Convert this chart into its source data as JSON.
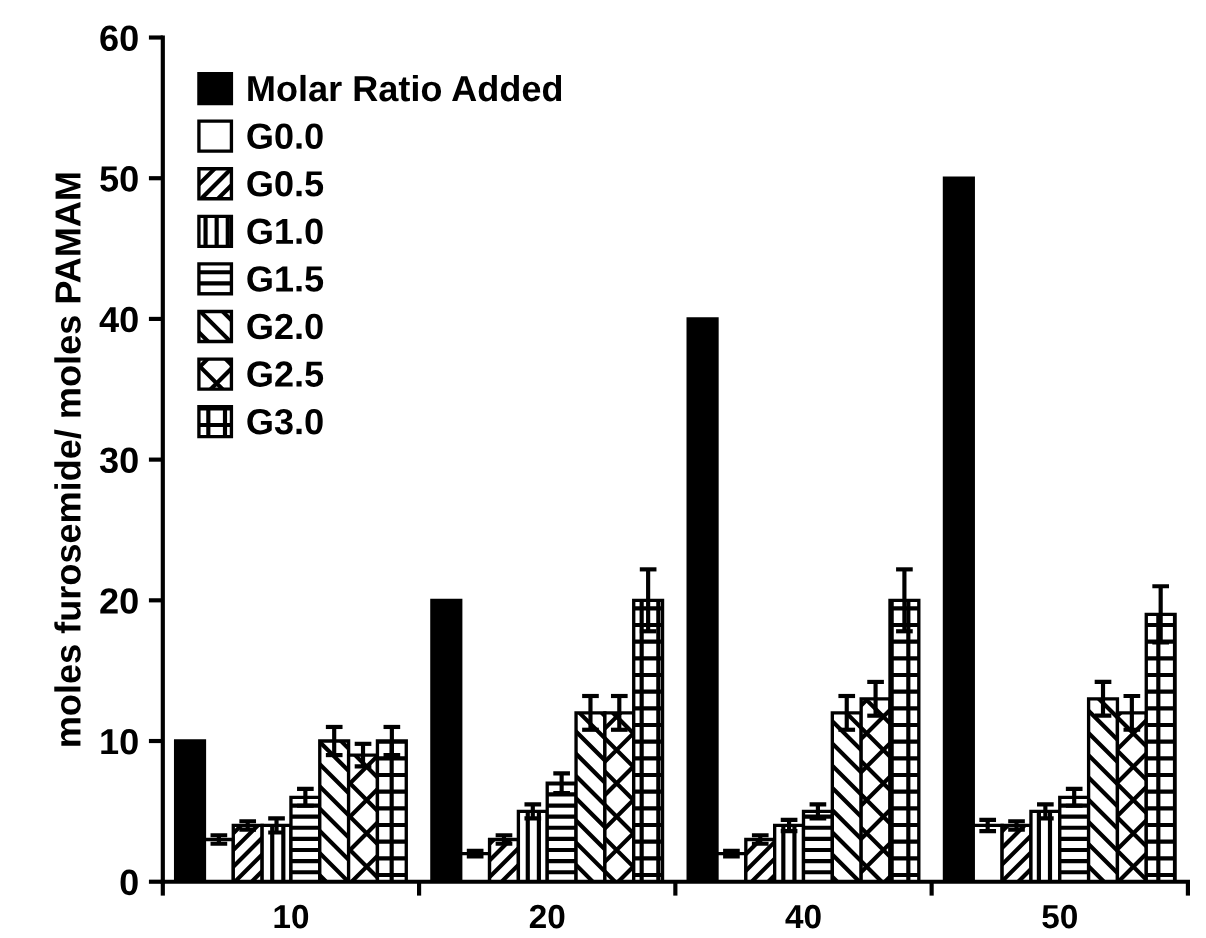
{
  "chart_data": {
    "type": "bar",
    "ylabel": "moles furosemide/ moles PAMAM",
    "categories": [
      "10",
      "20",
      "40",
      "50"
    ],
    "series": [
      {
        "name": "Molar Ratio Added",
        "color": "#000000",
        "values": [
          10,
          20,
          40,
          50
        ]
      },
      {
        "name": "G0.0",
        "color": "#ffffff",
        "values": [
          3,
          2,
          2,
          4
        ],
        "errors": [
          0.3,
          0.2,
          0.2,
          0.4
        ]
      },
      {
        "name": "G0.5",
        "color": "#000000",
        "values": [
          4,
          3,
          3,
          4
        ],
        "errors": [
          0.3,
          0.3,
          0.3,
          0.3
        ]
      },
      {
        "name": "G1.0",
        "color": "#000000",
        "values": [
          4,
          5,
          4,
          5
        ],
        "errors": [
          0.5,
          0.5,
          0.4,
          0.5
        ]
      },
      {
        "name": "G1.5",
        "color": "#000000",
        "values": [
          6,
          7,
          5,
          6
        ],
        "errors": [
          0.6,
          0.7,
          0.5,
          0.6
        ]
      },
      {
        "name": "G2.0",
        "color": "#000000",
        "values": [
          10,
          12,
          12,
          13
        ],
        "errors": [
          1,
          1.2,
          1.2,
          1.2
        ]
      },
      {
        "name": "G2.5",
        "color": "#000000",
        "values": [
          9,
          12,
          13,
          12
        ],
        "errors": [
          0.8,
          1.2,
          1.2,
          1.2
        ]
      },
      {
        "name": "G3.0",
        "color": "#000000",
        "values": [
          10,
          20,
          20,
          19
        ],
        "errors": [
          1,
          2.2,
          2.2,
          2
        ]
      }
    ],
    "ylim": [
      0,
      60
    ],
    "yticks": [
      0,
      10,
      20,
      30,
      40,
      50,
      60
    ],
    "legend": "top left",
    "grid": false
  }
}
